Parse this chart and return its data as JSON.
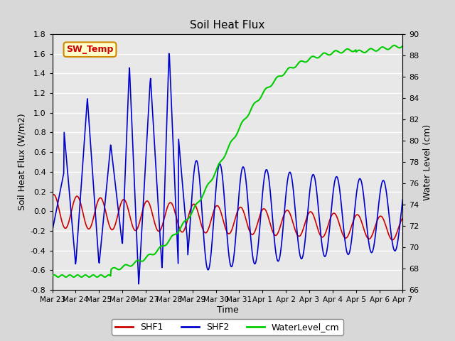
{
  "title": "Soil Heat Flux",
  "ylabel_left": "Soil Heat Flux (W/m2)",
  "ylabel_right": "Water Level (cm)",
  "xlabel": "Time",
  "annotation_text": "SW_Temp",
  "ylim_left": [
    -0.8,
    1.8
  ],
  "ylim_right": [
    66,
    90
  ],
  "yticks_left": [
    -0.8,
    -0.6,
    -0.4,
    -0.2,
    0.0,
    0.2,
    0.4,
    0.6,
    0.8,
    1.0,
    1.2,
    1.4,
    1.6,
    1.8
  ],
  "yticks_right": [
    66,
    68,
    70,
    72,
    74,
    76,
    78,
    80,
    82,
    84,
    86,
    88,
    90
  ],
  "color_shf1": "#cc0000",
  "color_shf2": "#0000cc",
  "color_wl": "#00cc00",
  "color_annot_bg": "#ffffcc",
  "color_annot_text": "#cc0000",
  "color_annot_border": "#cc8800",
  "bg_color": "#d8d8d8",
  "plot_bg_color": "#e8e8e8",
  "grid_color": "#ffffff",
  "legend_labels": [
    "SHF1",
    "SHF2",
    "WaterLevel_cm"
  ],
  "x_tick_labels": [
    "Mar 23",
    "Mar 24",
    "Mar 25",
    "Mar 26",
    "Mar 27",
    "Mar 28",
    "Mar 29",
    "Mar 30",
    "Mar 31",
    "Apr 1",
    "Apr 2",
    "Apr 3",
    "Apr 4",
    "Apr 5",
    "Apr 6",
    "Apr 7"
  ]
}
